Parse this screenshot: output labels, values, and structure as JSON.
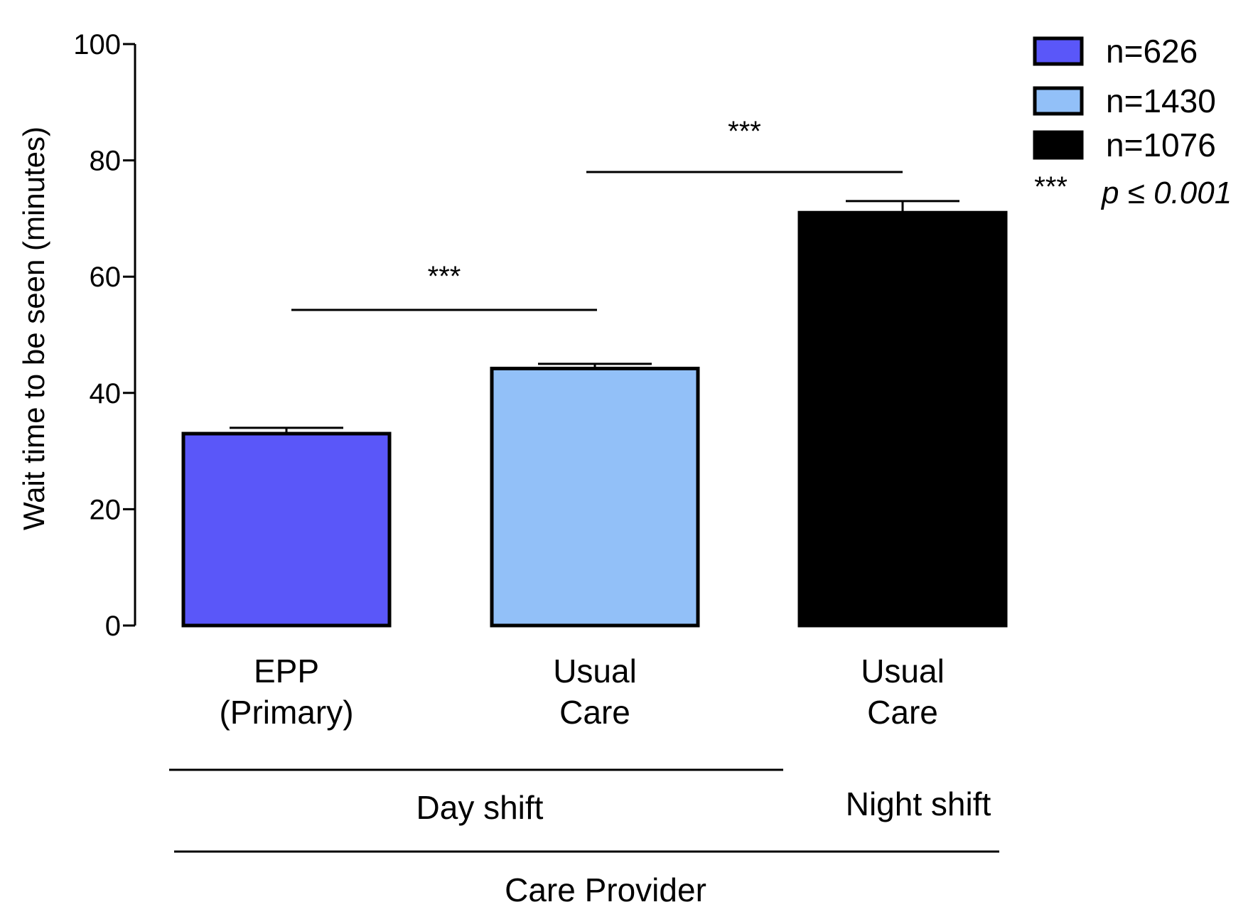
{
  "chart_data": {
    "type": "bar",
    "ylabel": "Wait time to be seen (minutes)",
    "xlabel": "Care Provider",
    "ylim": [
      0,
      100
    ],
    "yticks": [
      "0",
      "20",
      "40",
      "60",
      "80",
      "100"
    ],
    "grid": false,
    "legend_position": "top-right",
    "bars": [
      {
        "label_line1": "EPP",
        "label_line2": "(Primary)",
        "value": 33.0,
        "error": 1.0,
        "color": "#5a57f9",
        "legend": "n=626"
      },
      {
        "label_line1": "Usual",
        "label_line2": "Care",
        "value": 44.2,
        "error": 0.8,
        "color": "#92c0f8",
        "legend": "n=1430"
      },
      {
        "label_line1": "Usual",
        "label_line2": "Care",
        "value": 71.0,
        "error": 2.0,
        "color": "#000000",
        "legend": "n=1076"
      }
    ],
    "groups": [
      {
        "label": "Day shift"
      },
      {
        "label": "Night shift"
      }
    ],
    "significance": [
      {
        "label": "***",
        "from_bar": 0,
        "to_bar": 1
      },
      {
        "label": "***",
        "from_bar": 1,
        "to_bar": 2
      }
    ],
    "legend_note_stars": "***",
    "legend_note_p": "p ≤ 0.001"
  }
}
